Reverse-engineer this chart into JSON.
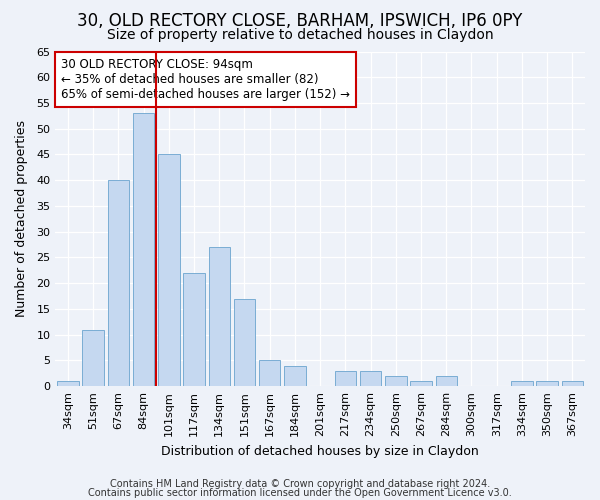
{
  "title1": "30, OLD RECTORY CLOSE, BARHAM, IPSWICH, IP6 0PY",
  "title2": "Size of property relative to detached houses in Claydon",
  "xlabel": "Distribution of detached houses by size in Claydon",
  "ylabel": "Number of detached properties",
  "bin_labels": [
    "34sqm",
    "51sqm",
    "67sqm",
    "84sqm",
    "101sqm",
    "117sqm",
    "134sqm",
    "151sqm",
    "167sqm",
    "184sqm",
    "201sqm",
    "217sqm",
    "234sqm",
    "250sqm",
    "267sqm",
    "284sqm",
    "300sqm",
    "317sqm",
    "334sqm",
    "350sqm",
    "367sqm"
  ],
  "bar_heights": [
    1,
    11,
    40,
    53,
    45,
    22,
    27,
    17,
    5,
    4,
    0,
    3,
    3,
    2,
    1,
    2,
    0,
    0,
    1,
    1,
    1
  ],
  "bar_color": "#c5d8f0",
  "bar_edgecolor": "#7aadd4",
  "vline_color": "#cc0000",
  "vline_pos": 3.5,
  "annotation_line1": "30 OLD RECTORY CLOSE: 94sqm",
  "annotation_line2": "← 35% of detached houses are smaller (82)",
  "annotation_line3": "65% of semi-detached houses are larger (152) →",
  "annotation_box_facecolor": "#ffffff",
  "annotation_box_edgecolor": "#cc0000",
  "ylim": [
    0,
    65
  ],
  "yticks": [
    0,
    5,
    10,
    15,
    20,
    25,
    30,
    35,
    40,
    45,
    50,
    55,
    60,
    65
  ],
  "footnote1": "Contains HM Land Registry data © Crown copyright and database right 2024.",
  "footnote2": "Contains public sector information licensed under the Open Government Licence v3.0.",
  "bg_color": "#eef2f9",
  "grid_color": "#ffffff",
  "title1_fontsize": 12,
  "title2_fontsize": 10,
  "xlabel_fontsize": 9,
  "ylabel_fontsize": 9,
  "tick_fontsize": 8,
  "annotation_fontsize": 8.5,
  "footnote_fontsize": 7
}
